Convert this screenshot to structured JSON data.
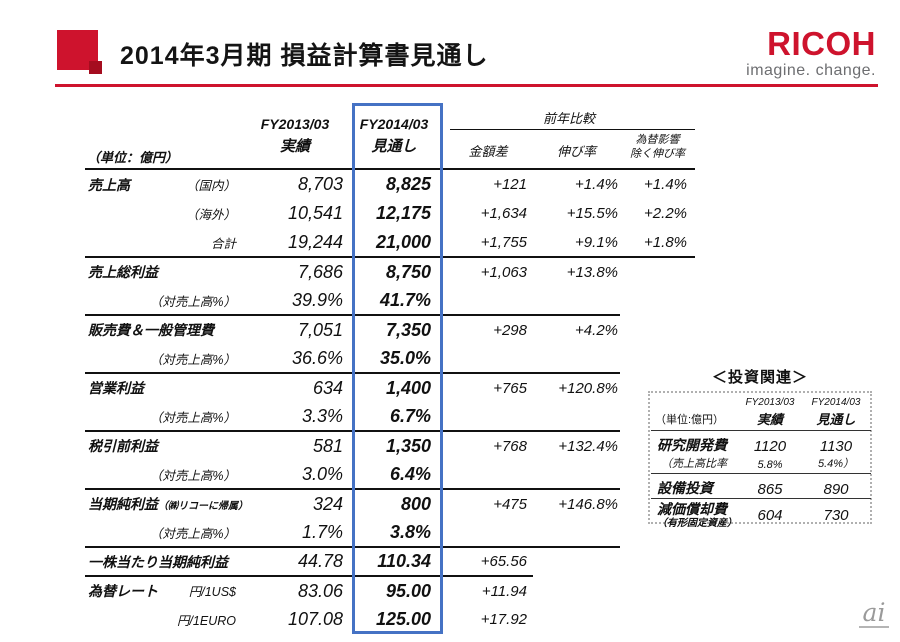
{
  "colors": {
    "ricoh_red": "#ce132d",
    "accent_blue": "#4572c4",
    "text": "#111111",
    "logo_gray": "#6d6e71",
    "watermark_gray": "#9a9a9a"
  },
  "header": {
    "title": "2014年3月期 損益計算書見通し",
    "logo_text": "RICOH",
    "logo_tagline": "imagine. change."
  },
  "main_table": {
    "unit_label": "（単位：億円）",
    "col_fy2013_line1": "FY2013/03",
    "col_fy2013_line2": "実績",
    "col_fy2014_line1": "FY2014/03",
    "col_fy2014_line2": "見通し",
    "comparison_header": "前年比較",
    "col_diff": "金額差",
    "col_growth": "伸び率",
    "col_fx_line1": "為替影響",
    "col_fx_line2": "除く伸び率",
    "rows": [
      {
        "label": "売上高",
        "sub": "（国内）",
        "fy13": "8,703",
        "fy14": "8,825",
        "diff": "+121",
        "growth": "+1.4%",
        "fx": "+1.4%",
        "line": "none"
      },
      {
        "label": "",
        "sub": "（海外）",
        "fy13": "10,541",
        "fy14": "12,175",
        "diff": "+1,634",
        "growth": "+15.5%",
        "fx": "+2.2%",
        "line": "none"
      },
      {
        "label": "",
        "sub": "合計",
        "fy13": "19,244",
        "fy14": "21,000",
        "diff": "+1,755",
        "growth": "+9.1%",
        "fx": "+1.8%",
        "line": "full"
      },
      {
        "label": "売上総利益",
        "sub": "",
        "fy13": "7,686",
        "fy14": "8,750",
        "diff": "+1,063",
        "growth": "+13.8%",
        "fx": "",
        "line": "none"
      },
      {
        "label": "",
        "sub": "（対売上高%）",
        "fy13": "39.9%",
        "fy14": "41.7%",
        "diff": "",
        "growth": "",
        "fx": "",
        "line": "growth"
      },
      {
        "label": "販売費＆一般管理費",
        "sub": "",
        "fy13": "7,051",
        "fy14": "7,350",
        "diff": "+298",
        "growth": "+4.2%",
        "fx": "",
        "line": "none"
      },
      {
        "label": "",
        "sub": "（対売上高%）",
        "fy13": "36.6%",
        "fy14": "35.0%",
        "diff": "",
        "growth": "",
        "fx": "",
        "line": "growth"
      },
      {
        "label": "営業利益",
        "sub": "",
        "fy13": "634",
        "fy14": "1,400",
        "diff": "+765",
        "growth": "+120.8%",
        "fx": "",
        "line": "none"
      },
      {
        "label": "",
        "sub": "（対売上高%）",
        "fy13": "3.3%",
        "fy14": "6.7%",
        "diff": "",
        "growth": "",
        "fx": "",
        "line": "growth"
      },
      {
        "label": "税引前利益",
        "sub": "",
        "fy13": "581",
        "fy14": "1,350",
        "diff": "+768",
        "growth": "+132.4%",
        "fx": "",
        "line": "none"
      },
      {
        "label": "",
        "sub": "（対売上高%）",
        "fy13": "3.0%",
        "fy14": "6.4%",
        "diff": "",
        "growth": "",
        "fx": "",
        "line": "growth"
      },
      {
        "label": "当期純利益",
        "note": "（㈱リコーに帰属）",
        "sub": "",
        "fy13": "324",
        "fy14": "800",
        "diff": "+475",
        "growth": "+146.8%",
        "fx": "",
        "line": "none"
      },
      {
        "label": "",
        "sub": "（対売上高%）",
        "fy13": "1.7%",
        "fy14": "3.8%",
        "diff": "",
        "growth": "",
        "fx": "",
        "line": "growth"
      },
      {
        "label": "一株当たり当期純利益",
        "sub": "",
        "fy13": "44.78",
        "fy14": "110.34",
        "diff": "+65.56",
        "growth": "",
        "fx": "",
        "line": "diff"
      },
      {
        "label": "為替レート",
        "sub": "円/1US$",
        "fy13": "83.06",
        "fy14": "95.00",
        "diff": "+11.94",
        "growth": "",
        "fx": "",
        "line": "none"
      },
      {
        "label": "",
        "sub": "円/1EURO",
        "fy13": "107.08",
        "fy14": "125.00",
        "diff": "+17.92",
        "growth": "",
        "fx": "",
        "line": "none"
      }
    ]
  },
  "investment": {
    "title": "＜投資関連＞",
    "unit_label": "（単位:億円）",
    "col_fy2013_line1": "FY2013/03",
    "col_fy2013_line2": "実績",
    "col_fy2014_line1": "FY2014/03",
    "col_fy2014_line2": "見通し",
    "rows": [
      {
        "label": "研究開発費",
        "note": "",
        "fy13": "1120",
        "fy14": "1130",
        "style": "main",
        "line": false
      },
      {
        "label": "（売上高比率",
        "note": "",
        "fy13": "5.8%",
        "fy14": "5.4%）",
        "style": "sub",
        "line": true
      },
      {
        "label": "設備投資",
        "note": "",
        "fy13": "865",
        "fy14": "890",
        "style": "main",
        "line": true
      },
      {
        "label": "減価償却費",
        "note": "（有形固定資産）",
        "fy13": "604",
        "fy14": "730",
        "style": "main",
        "line": false
      }
    ]
  },
  "watermark": {
    "text": "ai"
  }
}
